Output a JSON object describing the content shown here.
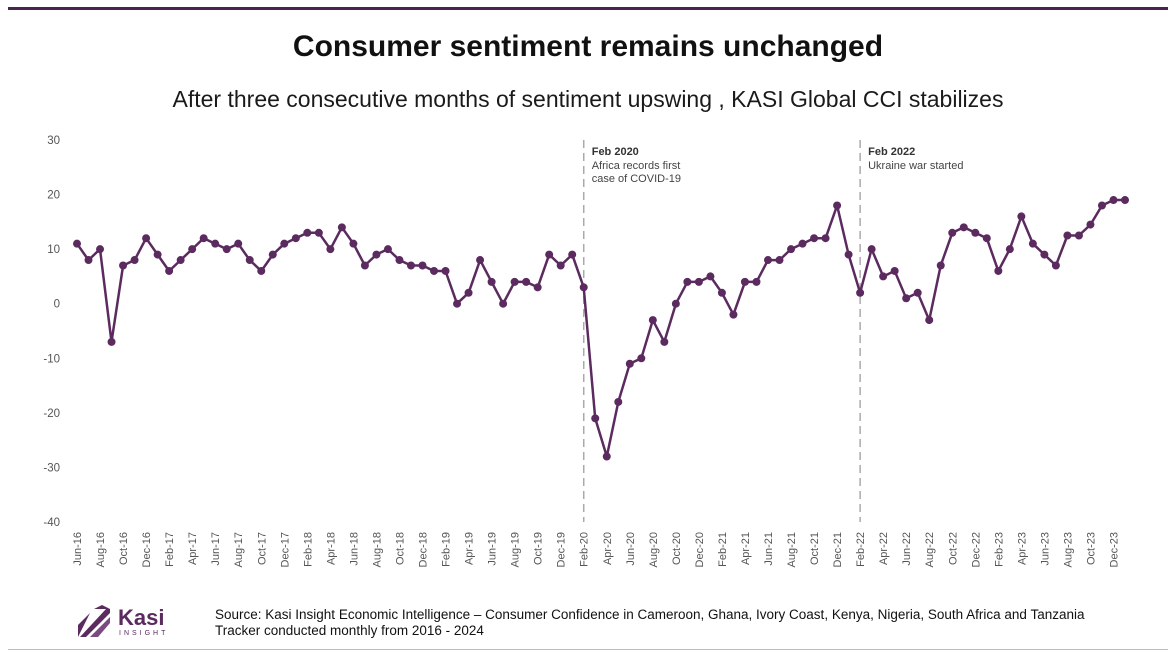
{
  "title": "Consumer sentiment remains unchanged",
  "subtitle": "After three consecutive months of sentiment upswing , KASI Global CCI stabilizes",
  "source": {
    "line1": "Source: Kasi Insight Economic Intelligence – Consumer Confidence in Cameroon, Ghana, Ivory Coast, Kenya, Nigeria, South Africa and Tanzania",
    "line2": "Tracker conducted monthly from 2016 - 2024"
  },
  "logo": {
    "word": "Kasi",
    "sub": "INSIGHT"
  },
  "colors": {
    "line": "#5b2a5f",
    "accent": "#4a2350",
    "annotation": "#aaaaaa",
    "text": "#555555"
  },
  "chart_data": {
    "type": "line",
    "title": "Consumer sentiment remains unchanged",
    "xlabel": "",
    "ylabel": "",
    "ylim": [
      -40,
      30
    ],
    "yticks": [
      -40,
      -30,
      -20,
      -10,
      0,
      10,
      20,
      30
    ],
    "grid": false,
    "x_tick_labels": [
      "Jun-16",
      "Aug-16",
      "Oct-16",
      "Dec-16",
      "Feb-17",
      "Apr-17",
      "Jun-17",
      "Aug-17",
      "Oct-17",
      "Dec-17",
      "Feb-18",
      "Apr-18",
      "Jun-18",
      "Aug-18",
      "Oct-18",
      "Dec-18",
      "Feb-19",
      "Apr-19",
      "Jun-19",
      "Aug-19",
      "Oct-19",
      "Dec-19",
      "Feb-20",
      "Apr-20",
      "Jun-20",
      "Aug-20",
      "Oct-20",
      "Dec-20",
      "Feb-21",
      "Apr-21",
      "Jun-21",
      "Aug-21",
      "Oct-21",
      "Dec-21",
      "Feb-22",
      "Apr-22",
      "Jun-22",
      "Aug-22",
      "Oct-22",
      "Dec-22",
      "Feb-23",
      "Apr-23",
      "Jun-23",
      "Aug-23",
      "Oct-23",
      "Dec-23"
    ],
    "series": [
      {
        "name": "KASI Global CCI",
        "values": [
          11,
          8,
          10,
          -7,
          7,
          8,
          12,
          9,
          6,
          8,
          10,
          12,
          11,
          10,
          11,
          8,
          6,
          9,
          11,
          12,
          13,
          13,
          10,
          14,
          11,
          7,
          9,
          10,
          8,
          7,
          7,
          6,
          6,
          0,
          2,
          8,
          4,
          0,
          4,
          4,
          3,
          9,
          7,
          9,
          3,
          -21,
          -28,
          -18,
          -11,
          -10,
          -3,
          -7,
          0,
          4,
          4,
          5,
          2,
          -2,
          4,
          4,
          8,
          8,
          10,
          11,
          12,
          12,
          18,
          9,
          2,
          10,
          5,
          6,
          1,
          2,
          -3,
          7,
          13,
          14,
          13,
          12,
          6,
          10,
          16,
          11,
          9,
          7,
          12.5,
          12.5,
          14.5,
          18,
          19,
          19
        ]
      }
    ],
    "annotations": [
      {
        "index": 44,
        "label": "Feb 2020",
        "text": [
          "Africa records first",
          "case of COVID-19"
        ]
      },
      {
        "index": 68,
        "label": "Feb 2022",
        "text": [
          "Ukraine war started"
        ]
      }
    ]
  }
}
